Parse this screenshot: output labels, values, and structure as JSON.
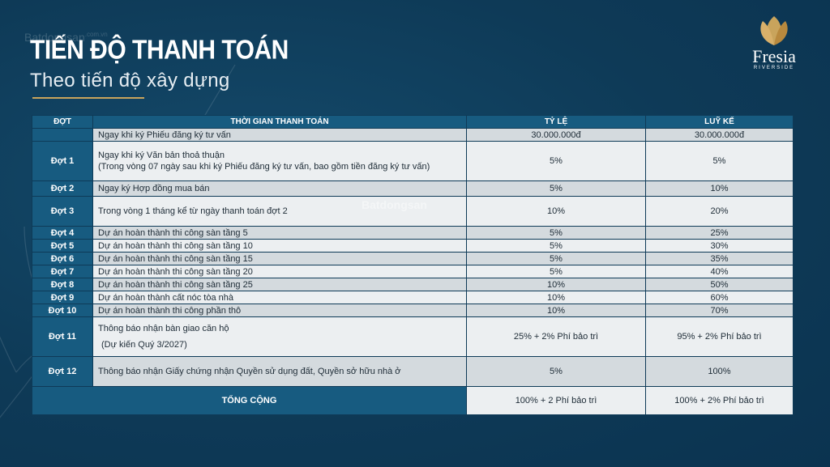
{
  "watermark": {
    "top_text": "Batdongsan",
    "top_domain": ".com.vn",
    "center_text": "Batdongsan"
  },
  "header": {
    "title": "TIẾN ĐỘ THANH TOÁN",
    "subtitle": "Theo tiến độ xây dựng"
  },
  "logo": {
    "name": "Fresia",
    "sub": "RIVERSIDE",
    "icon": "lotus-leaf-icon"
  },
  "table": {
    "headers": [
      "ĐỢT",
      "THỜI GIAN THANH TOÁN",
      "TỶ LỆ",
      "LUỸ KẾ"
    ],
    "rows": [
      {
        "dot": "",
        "time": "Ngay khi ký Phiếu đăng ký tư vấn",
        "time2": "",
        "rate": "30.000.000đ",
        "cum": "30.000.000đ"
      },
      {
        "dot": "Đợt 1",
        "time": "Ngay khi ký Văn bản thoả thuận",
        "time2": "(Trong vòng 07 ngày sau khi ký Phiếu đăng ký tư vấn, bao gồm tiền đăng ký tư vấn)",
        "rate": "5%",
        "cum": "5%"
      },
      {
        "dot": "Đợt 2",
        "time": "Ngay ký Hợp đồng mua bán",
        "time2": "",
        "rate": "5%",
        "cum": "10%"
      },
      {
        "dot": "Đợt 3",
        "time": "Trong vòng 1 tháng kể từ ngày thanh toán đợt 2",
        "time2": "",
        "rate": "10%",
        "cum": "20%"
      },
      {
        "dot": "Đợt 4",
        "time": "Dự án hoàn thành thi công sàn tầng 5",
        "time2": "",
        "rate": "5%",
        "cum": "25%"
      },
      {
        "dot": "Đợt 5",
        "time": "Dự án hoàn thành thi công sàn tầng 10",
        "time2": "",
        "rate": "5%",
        "cum": "30%"
      },
      {
        "dot": "Đợt 6",
        "time": "Dự án hoàn thành thi công sàn tầng 15",
        "time2": "",
        "rate": "5%",
        "cum": "35%"
      },
      {
        "dot": "Đợt 7",
        "time": "Dự án hoàn thành thi công sàn tầng 20",
        "time2": "",
        "rate": "5%",
        "cum": "40%"
      },
      {
        "dot": "Đợt 8",
        "time": "Dự án hoàn thành thi công sàn tầng 25",
        "time2": "",
        "rate": "10%",
        "cum": "50%"
      },
      {
        "dot": "Đợt 9",
        "time": "Dự án hoàn thành cất nóc tòa nhà",
        "time2": "",
        "rate": "10%",
        "cum": "60%"
      },
      {
        "dot": "Đợt 10",
        "time": "Dự án hoàn thành thi công phần thô",
        "time2": "",
        "rate": "10%",
        "cum": "70%"
      },
      {
        "dot": "Đợt 11",
        "time": "Thông báo nhận bàn giao căn hộ",
        "time2": "(Dự kiến Quý 3/2027)",
        "rate": "25% + 2% Phí bảo trì",
        "cum": "95% + 2% Phí bảo trì"
      },
      {
        "dot": "Đợt 12",
        "time": "Thông báo nhận Giấy chứng nhận Quyền sử dụng đất, Quyền sở hữu nhà ở",
        "time2": "",
        "rate": "5%",
        "cum": "100%"
      }
    ],
    "total": {
      "label": "TỔNG CỘNG",
      "rate": "100% + 2 Phí bảo trì",
      "cum": "100% + 2% Phí bảo trì"
    }
  },
  "colors": {
    "background": "#0e3a57",
    "header_cell": "#175b80",
    "row_alt": "#d4dade",
    "row_lite": "#eceff1",
    "accent_gold": "#c9a45c"
  }
}
